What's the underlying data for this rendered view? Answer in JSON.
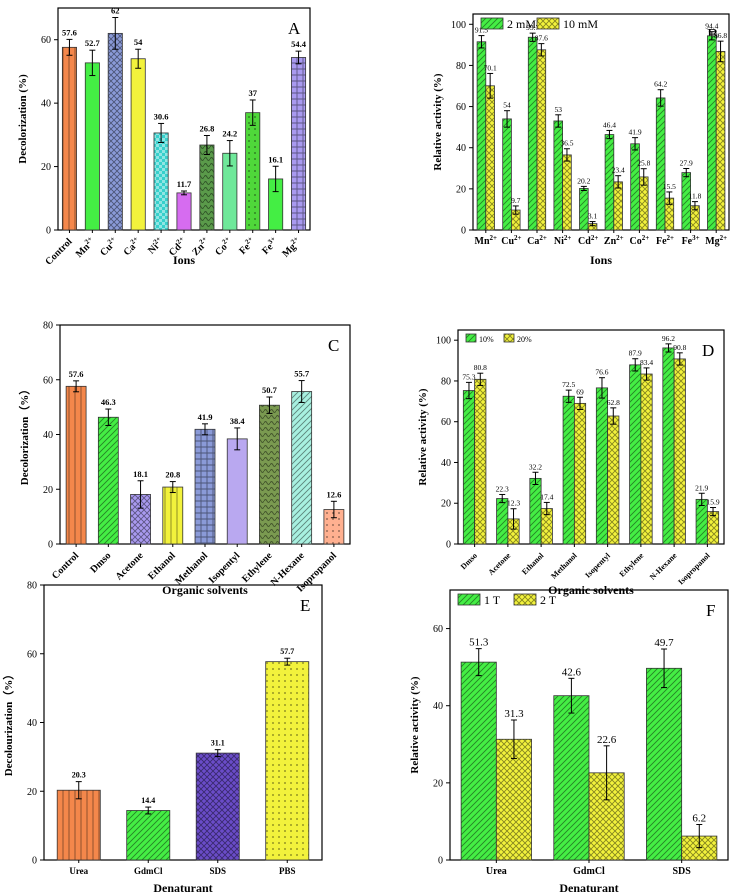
{
  "colors": {
    "orange": "#f4874b",
    "green": "#44ee44",
    "blue": "#8a9ad8",
    "yellow": "#f2f23c",
    "teal": "#37d0cc",
    "violet": "#d66cf0",
    "olive": "#5a9a4a",
    "mint": "#6fe89a",
    "brightgreen": "#4fd83a",
    "purple": "#6a4cc8",
    "lightviolet": "#a99af0",
    "olivedark": "#7a9a50",
    "cyan": "#a8f0e0",
    "peach": "#ffb090",
    "navy": "#4030a0"
  },
  "chart_data": [
    {
      "id": "A",
      "type": "bar",
      "panel_label": "A",
      "title": "",
      "xlabel": "Ions",
      "ylabel": "Decolorization (%)",
      "ylim": [
        0,
        70
      ],
      "yticks": [
        "0",
        "20",
        "40",
        "60"
      ],
      "categories": [
        "Control",
        "Mn2+",
        "Cu2+",
        "Ca2+",
        "Ni2+",
        "Cd2+",
        "Zn2+",
        "Co2+",
        "Fe2+",
        "Fe3+",
        "Mg2+"
      ],
      "tick_labels": [
        {
          "base": "Control",
          "sup": ""
        },
        {
          "base": "Mn",
          "sup": "2+"
        },
        {
          "base": "Cu",
          "sup": "2+"
        },
        {
          "base": "Ca",
          "sup": "2+"
        },
        {
          "base": "Ni",
          "sup": "2+"
        },
        {
          "base": "Cd",
          "sup": "2+"
        },
        {
          "base": "Zn",
          "sup": "2+"
        },
        {
          "base": "Co",
          "sup": "2+"
        },
        {
          "base": "Fe",
          "sup": "2+"
        },
        {
          "base": "Fe",
          "sup": "3+"
        },
        {
          "base": "Mg",
          "sup": "2+"
        }
      ],
      "values": [
        57.6,
        52.7,
        62,
        54,
        30.6,
        11.7,
        26.8,
        24.2,
        37,
        16.1,
        54.4
      ],
      "errors": [
        2.5,
        4,
        5,
        3,
        3,
        0.6,
        3,
        4,
        4,
        4,
        2
      ],
      "data_labels": [
        "57.6",
        "52.7",
        "62",
        "54",
        "30.6",
        "11.7",
        "26.8",
        "24.2",
        "37",
        "16.1",
        "54.4"
      ],
      "bar_colors": [
        "#f4874b",
        "#44ee44",
        "#8a9ad8",
        "#f2f23c",
        "#37d0cc",
        "#d66cf0",
        "#5a9a4a",
        "#6fe89a",
        "#4fd83a",
        "#44ee44",
        "#a99af0"
      ],
      "bar_patterns": [
        "vline",
        "none",
        "cross",
        "none",
        "checker",
        "none",
        "wave",
        "none",
        "dots",
        "none",
        "grid"
      ]
    },
    {
      "id": "B",
      "type": "bar",
      "panel_label": "B",
      "xlabel": "Ions",
      "ylabel": "Relative activity (%)",
      "ylim": [
        0,
        105
      ],
      "yticks": [
        "0",
        "20",
        "40",
        "60",
        "80",
        "100"
      ],
      "categories": [
        "Mn2+",
        "Cu2+",
        "Ca2+",
        "Ni2+",
        "Cd2+",
        "Zn2+",
        "Co2+",
        "Fe2+",
        "Fe3+",
        "Mg2+"
      ],
      "tick_labels": [
        {
          "base": "Mn",
          "sup": "2+"
        },
        {
          "base": "Cu",
          "sup": "2+"
        },
        {
          "base": "Ca",
          "sup": "2+"
        },
        {
          "base": "Ni",
          "sup": "2+"
        },
        {
          "base": "Cd",
          "sup": "2+"
        },
        {
          "base": "Zn",
          "sup": "2+"
        },
        {
          "base": "Co",
          "sup": "2+"
        },
        {
          "base": "Fe",
          "sup": "2+"
        },
        {
          "base": "Fe",
          "sup": "3+"
        },
        {
          "base": "Mg",
          "sup": "2+"
        }
      ],
      "legend": [
        "2 mM",
        "10 mM"
      ],
      "series": [
        {
          "name": "2 mM",
          "color": "#44ee44",
          "pattern": "diag",
          "values": [
            91.5,
            54,
            93.7,
            53,
            20.2,
            46.4,
            41.9,
            64.2,
            27.9,
            94.4
          ],
          "errors": [
            3,
            4,
            2,
            3,
            1,
            2,
            3,
            4,
            2,
            2
          ],
          "labels": [
            "91.5",
            "54",
            "93.7",
            "53",
            "20.2",
            "46.4",
            "41.9",
            "64.2",
            "27.9",
            "94.4"
          ]
        },
        {
          "name": "10 mM",
          "color": "#f2f23c",
          "pattern": "xdiag",
          "values": [
            70.1,
            9.7,
            87.6,
            36.5,
            3.1,
            23.4,
            25.8,
            15.5,
            11.8,
            86.8
          ],
          "errors": [
            6,
            2,
            3,
            3,
            1,
            3,
            4,
            3,
            2,
            5
          ],
          "labels": [
            "70.1",
            "9.7",
            "87.6",
            "36.5",
            "3.1",
            "23.4",
            "25.8",
            "15.5",
            "11.8",
            "86.8"
          ]
        }
      ]
    },
    {
      "id": "C",
      "type": "bar",
      "panel_label": "C",
      "xlabel": "Organic solvents",
      "ylabel": "Decolorization（%）",
      "ylim": [
        0,
        80
      ],
      "yticks": [
        "0",
        "20",
        "40",
        "60",
        "80"
      ],
      "categories": [
        "Control",
        "Dmso",
        "Acetone",
        "Ethanol",
        "Methanol",
        "Isopentyl",
        "Ethylene",
        "N-Hexane",
        "Isopropanol"
      ],
      "values": [
        57.6,
        46.3,
        18.1,
        20.8,
        41.9,
        38.4,
        50.7,
        55.7,
        12.6
      ],
      "errors": [
        2,
        3,
        5,
        2,
        2,
        4,
        3,
        4,
        3
      ],
      "data_labels": [
        "57.6",
        "46.3",
        "18.1",
        "20.8",
        "41.9",
        "38.4",
        "50.7",
        "55.7",
        "12.6"
      ],
      "bar_colors": [
        "#f4874b",
        "#44ee44",
        "#a99af0",
        "#f2f23c",
        "#8a9ad8",
        "#b9a8f0",
        "#7a9a50",
        "#a8f0e0",
        "#ffb090"
      ],
      "bar_patterns": [
        "vline",
        "diag",
        "cross",
        "vline",
        "grid",
        "none",
        "wave",
        "diag",
        "dots"
      ]
    },
    {
      "id": "D",
      "type": "bar",
      "panel_label": "D",
      "xlabel": "Organic solvents",
      "ylabel": "Relative activity (%)",
      "ylim": [
        0,
        105
      ],
      "yticks": [
        "0",
        "20",
        "40",
        "60",
        "80",
        "100"
      ],
      "categories": [
        "Dmso",
        "Acetone",
        "Ethanol",
        "Methanol",
        "Isopentyl",
        "Ethylene",
        "N-Hexane",
        "Isopropanol"
      ],
      "legend": [
        "10%",
        "20%"
      ],
      "series": [
        {
          "name": "10%",
          "color": "#44ee44",
          "pattern": "diag",
          "values": [
            75.3,
            22.3,
            32.2,
            72.5,
            76.6,
            87.9,
            96.2,
            21.9
          ],
          "errors": [
            4,
            2,
            3,
            3,
            5,
            3,
            2,
            3
          ],
          "labels": [
            "75.3",
            "22.3",
            "32.2",
            "72.5",
            "76.6",
            "87.9",
            "96.2",
            "21.9"
          ]
        },
        {
          "name": "20%",
          "color": "#f2f23c",
          "pattern": "xdiag",
          "values": [
            80.8,
            12.3,
            17.4,
            69,
            62.8,
            83.4,
            90.8,
            15.9
          ],
          "errors": [
            3,
            5,
            3,
            3,
            4,
            3,
            3,
            2
          ],
          "labels": [
            "80.8",
            "12.3",
            "17.4",
            "69",
            "62.8",
            "83.4",
            "90.8",
            "15.9"
          ]
        }
      ]
    },
    {
      "id": "E",
      "type": "bar",
      "panel_label": "E",
      "xlabel": "Denaturant",
      "ylabel": "Decolourization（%）",
      "ylim": [
        0,
        80
      ],
      "yticks": [
        "0",
        "20",
        "40",
        "60",
        "80"
      ],
      "categories": [
        "Urea",
        "GdmCl",
        "SDS",
        "PBS"
      ],
      "values": [
        20.3,
        14.4,
        31.1,
        57.7
      ],
      "errors": [
        2.5,
        1,
        1,
        1
      ],
      "data_labels": [
        "20.3",
        "14.4",
        "31.1",
        "57.7"
      ],
      "bar_colors": [
        "#f4874b",
        "#44ee44",
        "#6a4cc8",
        "#f2f23c"
      ],
      "bar_patterns": [
        "vline",
        "diag",
        "cross",
        "dots"
      ]
    },
    {
      "id": "F",
      "type": "bar",
      "panel_label": "F",
      "xlabel": "Denaturant",
      "ylabel": "Relative activity (%)",
      "ylim": [
        0,
        70
      ],
      "yticks": [
        "0",
        "20",
        "40",
        "60"
      ],
      "categories": [
        "Urea",
        "GdmCl",
        "SDS"
      ],
      "legend": [
        "1 T",
        "2 T"
      ],
      "series": [
        {
          "name": "1 T",
          "color": "#44ee44",
          "pattern": "diag",
          "values": [
            51.3,
            42.6,
            49.7
          ],
          "errors": [
            3.5,
            4.5,
            5
          ],
          "labels": [
            "51.3",
            "42.6",
            "49.7"
          ]
        },
        {
          "name": "2 T",
          "color": "#f2f23c",
          "pattern": "xdiag",
          "values": [
            31.3,
            22.6,
            6.2
          ],
          "errors": [
            5,
            7,
            3
          ],
          "labels": [
            "31.3",
            "22.6",
            "6.2"
          ]
        }
      ]
    }
  ]
}
